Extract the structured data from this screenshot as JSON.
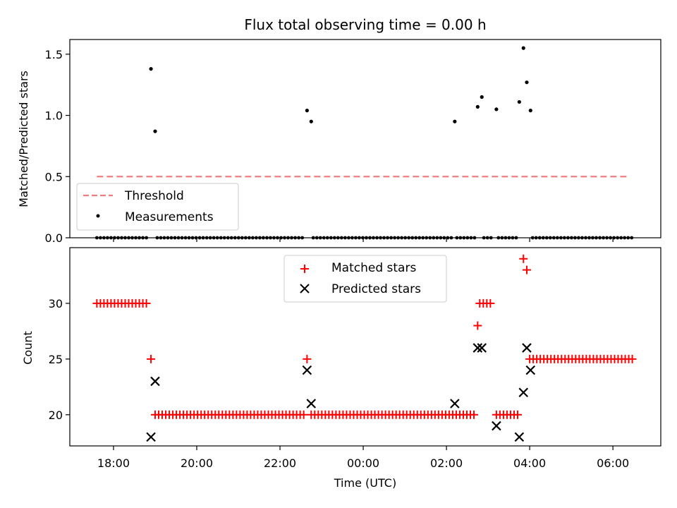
{
  "chart_data": [
    {
      "type": "scatter",
      "title": "Flux total observing time = 0.00 h",
      "xlabel": "",
      "ylabel": "Matched/Predicted stars",
      "ylim": [
        0,
        1.62
      ],
      "yticks": [
        0.0,
        0.5,
        1.0,
        1.5
      ],
      "ytick_labels": [
        "0.0",
        "0.5",
        "1.0",
        "1.5"
      ],
      "xlim_hours": [
        -7.05,
        7.15
      ],
      "legend": {
        "location": "lower-left",
        "entries": [
          "Threshold",
          "Measurements"
        ]
      },
      "colors": {
        "threshold": "#f08080",
        "measurements": "#000000"
      },
      "series": [
        {
          "name": "Threshold",
          "style": "dashed-line",
          "x_hours": [
            -6.4,
            6.4
          ],
          "values": [
            0.5,
            0.5
          ]
        },
        {
          "name": "Measurements",
          "style": "dot",
          "x_hours": [
            -5.1,
            -5.0,
            -1.35,
            -1.25,
            2.2,
            2.75,
            2.85,
            3.2,
            3.75,
            3.85,
            3.93,
            4.02
          ],
          "values": [
            1.38,
            0.87,
            1.04,
            0.95,
            0.95,
            1.07,
            1.15,
            1.05,
            1.11,
            1.55,
            1.27,
            1.04
          ],
          "zero_run_ranges_hours": [
            [
              -6.4,
              -5.15
            ],
            [
              -4.95,
              -1.4
            ],
            [
              -1.2,
              2.15
            ],
            [
              2.25,
              2.7
            ],
            [
              2.9,
              3.15
            ],
            [
              3.25,
              3.7
            ],
            [
              4.07,
              6.5
            ]
          ],
          "zero_run_step_hours": 0.085
        }
      ]
    },
    {
      "type": "scatter",
      "title": "",
      "xlabel": "Time (UTC)",
      "ylabel": "Count",
      "ylim": [
        17.2,
        35.0
      ],
      "yticks": [
        20,
        25,
        30
      ],
      "ytick_labels": [
        "20",
        "25",
        "30"
      ],
      "xlim_hours": [
        -7.05,
        7.15
      ],
      "xticks_hours": [
        -6,
        -4,
        -2,
        0,
        2,
        4,
        6
      ],
      "xtick_labels": [
        "18:00",
        "20:00",
        "22:00",
        "00:00",
        "02:00",
        "04:00",
        "06:00"
      ],
      "legend": {
        "location": "upper-center",
        "entries": [
          "Matched stars",
          "Predicted stars"
        ]
      },
      "colors": {
        "matched": "#ff0000",
        "predicted": "#000000"
      },
      "series": [
        {
          "name": "Matched stars",
          "marker": "plus",
          "x_hours": [
            -5.1,
            -1.35,
            2.75,
            3.85,
            3.93
          ],
          "values": [
            25,
            25,
            28,
            34,
            33
          ],
          "runs": [
            {
              "from_hours": -6.4,
              "to_hours": -5.2,
              "value": 30
            },
            {
              "from_hours": -5.0,
              "to_hours": -1.4,
              "value": 20
            },
            {
              "from_hours": -1.25,
              "to_hours": 2.7,
              "value": 20
            },
            {
              "from_hours": 2.8,
              "to_hours": 3.1,
              "value": 30
            },
            {
              "from_hours": 3.2,
              "to_hours": 3.75,
              "value": 20
            },
            {
              "from_hours": 4.0,
              "to_hours": 6.5,
              "value": 25
            }
          ],
          "run_step_hours": 0.085
        },
        {
          "name": "Predicted stars",
          "marker": "x",
          "x_hours": [
            -5.1,
            -5.0,
            -1.35,
            -1.25,
            2.2,
            2.75,
            2.85,
            3.2,
            3.75,
            3.85,
            3.93,
            4.02
          ],
          "values": [
            18,
            23,
            24,
            21,
            21,
            26,
            26,
            19,
            18,
            22,
            26,
            24
          ]
        }
      ]
    }
  ]
}
